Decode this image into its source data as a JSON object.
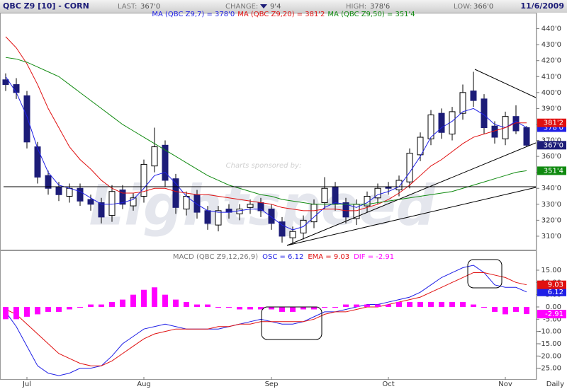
{
  "header": {
    "symbol": "QBC Z9 [10] - CORN",
    "last_label": "LAST:",
    "last": "367'0",
    "change_label": "CHANGE:",
    "change": "9'4",
    "high_label": "HIGH:",
    "high": "378'6",
    "low_label": "LOW:",
    "low": "366'0",
    "date": "11/6/2009"
  },
  "watermark": {
    "sponsor": "Charts sponsored by:",
    "brand": "Lightspeed"
  },
  "interval": "Daily",
  "chart_data": [
    {
      "type": "candlestick",
      "categories": [
        null,
        null,
        "Jul",
        null,
        null,
        null,
        null,
        null,
        null,
        null,
        null,
        null,
        null,
        "Aug",
        null,
        null,
        null,
        null,
        null,
        null,
        null,
        null,
        null,
        null,
        null,
        "Sep",
        null,
        null,
        null,
        null,
        null,
        null,
        null,
        null,
        null,
        null,
        "Oct",
        null,
        null,
        null,
        null,
        null,
        null,
        null,
        null,
        null,
        null,
        "Nov",
        null,
        null
      ],
      "open": [
        408,
        405,
        398,
        366,
        348,
        341,
        335,
        340,
        333,
        331,
        323,
        339,
        329,
        335,
        354,
        367,
        346,
        327,
        336,
        326,
        317,
        327,
        324,
        328,
        331,
        327,
        319,
        309,
        312,
        319,
        331,
        341,
        331,
        321,
        329,
        334,
        341,
        339,
        344,
        361,
        371,
        387,
        374,
        387,
        401,
        396,
        379,
        371,
        385,
        378
      ],
      "high": [
        412,
        409,
        401,
        369,
        351,
        344,
        343,
        343,
        336,
        334,
        342,
        342,
        337,
        358,
        378,
        370,
        349,
        338,
        339,
        329,
        329,
        330,
        330,
        333,
        334,
        330,
        322,
        316,
        323,
        333,
        347,
        344,
        334,
        333,
        338,
        343,
        344,
        348,
        365,
        375,
        389,
        390,
        391,
        405,
        413,
        399,
        382,
        388,
        392,
        379
      ],
      "low": [
        401,
        396,
        365,
        343,
        336,
        332,
        331,
        329,
        326,
        318,
        319,
        327,
        326,
        331,
        350,
        341,
        324,
        323,
        321,
        314,
        313,
        321,
        320,
        324,
        322,
        314,
        306,
        305,
        308,
        315,
        327,
        326,
        318,
        317,
        325,
        330,
        336,
        335,
        340,
        357,
        367,
        371,
        370,
        383,
        391,
        374,
        368,
        367,
        374,
        366
      ],
      "close": [
        405,
        400,
        369,
        347,
        340,
        336,
        340,
        332,
        330,
        322,
        338,
        330,
        334,
        355,
        366,
        345,
        328,
        335,
        325,
        318,
        326,
        325,
        327,
        330,
        326,
        318,
        310,
        313,
        320,
        330,
        340,
        330,
        322,
        330,
        335,
        340,
        340,
        345,
        362,
        372,
        386,
        375,
        388,
        400,
        395,
        378,
        372,
        385,
        376,
        367
      ],
      "up_color": "#ffffff",
      "down_color": "#1c1c78",
      "ylim": [
        302,
        450
      ],
      "yticks": [
        {
          "value": 310,
          "label": "310'0"
        },
        {
          "value": 320,
          "label": "320'0"
        },
        {
          "value": 330,
          "label": "330'0"
        },
        {
          "value": 340,
          "label": "340'0"
        },
        {
          "value": 350,
          "label": "350'0"
        },
        {
          "value": 360,
          "label": "360'0"
        },
        {
          "value": 370,
          "label": "370'0"
        },
        {
          "value": 380,
          "label": "380'0"
        },
        {
          "value": 390,
          "label": "390'0"
        },
        {
          "value": 400,
          "label": "400'0"
        },
        {
          "value": 410,
          "label": "410'0"
        },
        {
          "value": 420,
          "label": "420'0"
        },
        {
          "value": 430,
          "label": "430'0"
        },
        {
          "value": 440,
          "label": "440'0"
        }
      ],
      "grid": false,
      "series": [
        {
          "name": "MA (QBC Z9,7) = 378'0",
          "color": "#1f1fe6",
          "last_label": "378'0",
          "values": [
            410,
            400,
            385,
            365,
            350,
            342,
            340,
            338,
            334,
            330,
            330,
            331,
            333,
            340,
            348,
            350,
            343,
            335,
            330,
            326,
            325,
            325,
            326,
            327,
            327,
            322,
            317,
            314,
            316,
            322,
            328,
            331,
            330,
            328,
            331,
            336,
            338,
            341,
            350,
            360,
            372,
            378,
            382,
            388,
            390,
            386,
            380,
            378,
            382,
            378
          ]
        },
        {
          "name": "MA (QBC Z9,20) = 381'2",
          "color": "#e01010",
          "last_label": "381'2",
          "values": [
            435,
            428,
            418,
            405,
            390,
            378,
            366,
            358,
            352,
            345,
            340,
            337,
            337,
            338,
            340,
            340,
            338,
            337,
            336,
            336,
            335,
            334,
            333,
            332,
            331,
            330,
            328,
            327,
            326,
            326,
            327,
            327,
            326,
            326,
            328,
            330,
            333,
            337,
            342,
            348,
            354,
            358,
            363,
            368,
            372,
            374,
            376,
            378,
            381,
            381
          ]
        },
        {
          "name": "MA (QBC Z9,50) = 351'4",
          "color": "#108a10",
          "last_label": "351'4",
          "values": [
            422,
            421,
            419,
            416,
            413,
            410,
            405,
            400,
            395,
            390,
            385,
            380,
            376,
            372,
            368,
            364,
            360,
            356,
            352,
            348,
            345,
            342,
            340,
            338,
            336,
            335,
            333,
            332,
            331,
            330,
            330,
            330,
            330,
            330,
            330,
            331,
            332,
            333,
            334,
            335,
            336,
            337,
            338,
            340,
            342,
            344,
            346,
            348,
            350,
            351
          ]
        }
      ]
    },
    {
      "type": "macd",
      "title": "MACD (QBC Z9,12,26,9)",
      "ylim": [
        -30,
        22.5
      ],
      "yticks": [
        {
          "value": 15,
          "label": "15.00"
        },
        {
          "value": 10,
          "label": "10.00"
        },
        {
          "value": 5,
          "label": "5.00"
        },
        {
          "value": 0,
          "label": "0.00"
        },
        {
          "value": -5,
          "label": "-5.00"
        },
        {
          "value": -10,
          "label": "-10.00"
        },
        {
          "value": -15,
          "label": "-15.00"
        },
        {
          "value": -20,
          "label": "-20.00"
        },
        {
          "value": -25,
          "label": "-25.00"
        }
      ],
      "grid": false,
      "series": [
        {
          "name": "OSC = 6.12",
          "color": "#1f1fe6",
          "style": "line",
          "last_label": "6.12",
          "values": [
            -2,
            -8,
            -16,
            -24,
            -27,
            -28,
            -27,
            -25,
            -25,
            -24,
            -20,
            -15,
            -12,
            -9,
            -8,
            -7,
            -8,
            -9,
            -9,
            -9,
            -9,
            -8,
            -7,
            -6,
            -5,
            -6,
            -7,
            -7,
            -6,
            -4,
            -2,
            -2,
            -1,
            0,
            1,
            1,
            2,
            3,
            4,
            6,
            9,
            12,
            14,
            16,
            17,
            14,
            9,
            8,
            8,
            6.12
          ]
        },
        {
          "name": "EMA = 9.03",
          "color": "#e01010",
          "style": "line",
          "last_label": "9.03",
          "values": [
            -1,
            -3,
            -7,
            -11,
            -15,
            -19,
            -21,
            -23,
            -24,
            -24,
            -22,
            -19,
            -16,
            -13,
            -11,
            -10,
            -9,
            -9,
            -9,
            -9,
            -8,
            -8,
            -7,
            -7,
            -6,
            -6,
            -6,
            -6,
            -6,
            -5,
            -3,
            -2,
            -2,
            -1,
            0,
            0,
            1,
            2,
            3,
            4,
            6,
            8,
            10,
            12,
            14,
            14,
            13,
            12,
            10,
            9.03
          ]
        },
        {
          "name": "DIF = -2.91",
          "color": "#ff00ff",
          "style": "bar",
          "last_label": "-2.91",
          "values": [
            -5,
            -5,
            -4,
            -3,
            -2,
            -2,
            -1,
            0,
            1,
            1,
            2,
            3,
            5,
            7,
            8,
            5,
            3,
            2,
            1,
            1,
            0,
            0,
            -1,
            -1,
            -1,
            -1,
            -2,
            -2,
            -1,
            -1,
            0,
            0,
            1,
            1,
            1,
            1,
            1,
            2,
            2,
            2,
            2,
            2,
            2,
            2,
            1,
            0,
            -2,
            -3,
            -2,
            -2.91
          ]
        }
      ]
    }
  ]
}
